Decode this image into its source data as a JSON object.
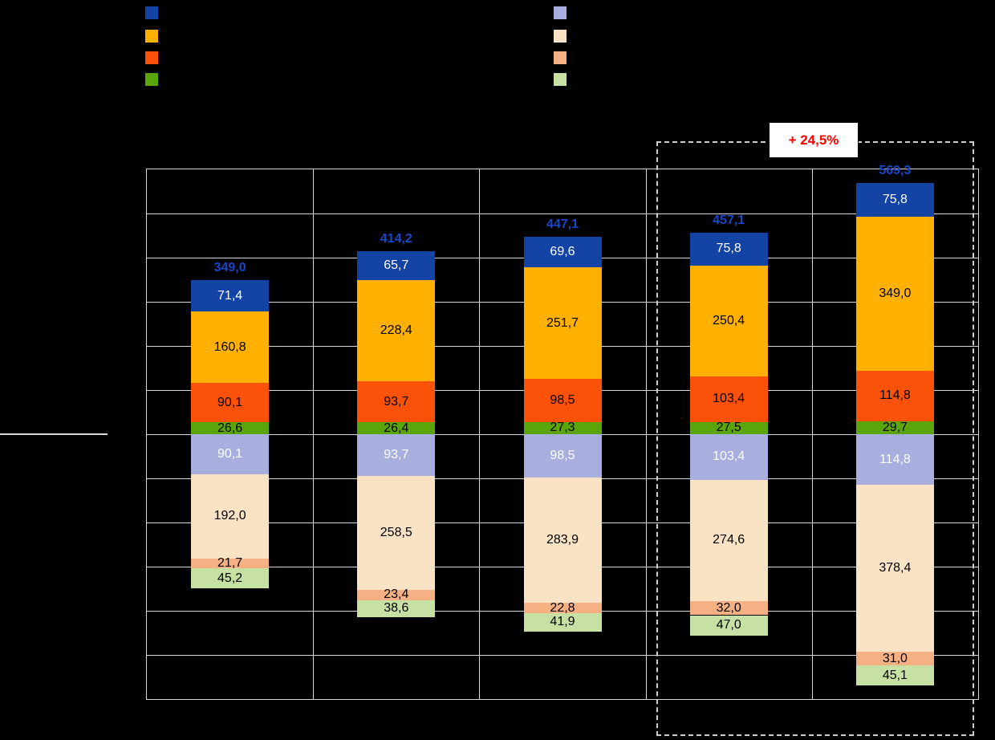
{
  "colors": {
    "background": "#000000",
    "grid": "#d9d9d9",
    "frame": "#d9d9d9",
    "dashed_box": "#cfcfcf",
    "total_label": "#1a46c8",
    "annotation_text": "#ff0000",
    "annotation_bg": "#ffffff",
    "axis_line": "#d9d9d9"
  },
  "legend": {
    "left_swatches": [
      {
        "name": "dark-blue",
        "color": "#1243a5"
      },
      {
        "name": "amber",
        "color": "#ffb000"
      },
      {
        "name": "orange-red",
        "color": "#fb5109"
      },
      {
        "name": "green",
        "color": "#5aa50a"
      }
    ],
    "right_swatches": [
      {
        "name": "lavender",
        "color": "#a8aede"
      },
      {
        "name": "peach",
        "color": "#fae3c4"
      },
      {
        "name": "salmon",
        "color": "#f5b183"
      },
      {
        "name": "light-green",
        "color": "#c7e0a3"
      }
    ]
  },
  "chart_data": {
    "type": "bar",
    "subtype": "mirrored-stacked-columns",
    "categories": [
      "",
      "",
      "",
      "",
      ""
    ],
    "totals": [
      349.0,
      414.2,
      447.1,
      457.1,
      569.3
    ],
    "upper_series": [
      {
        "name": "dark-blue",
        "color": "#1243a5",
        "text_color": "#ffffff",
        "values": [
          71.4,
          65.7,
          69.6,
          75.8,
          75.8
        ]
      },
      {
        "name": "amber",
        "color": "#ffb000",
        "text_color": "#000000",
        "values": [
          160.8,
          228.4,
          251.7,
          250.4,
          349.0
        ]
      },
      {
        "name": "orange-red",
        "color": "#fb5109",
        "text_color": "#000000",
        "values": [
          90.1,
          93.7,
          98.5,
          103.4,
          114.8
        ]
      },
      {
        "name": "green",
        "color": "#5aa50a",
        "text_color": "#000000",
        "values": [
          26.6,
          26.4,
          27.3,
          27.5,
          29.7
        ]
      }
    ],
    "lower_series": [
      {
        "name": "lavender",
        "color": "#a8aede",
        "text_color": "#ffffff",
        "values": [
          90.1,
          93.7,
          98.5,
          103.4,
          114.8
        ]
      },
      {
        "name": "peach",
        "color": "#fae3c4",
        "text_color": "#000000",
        "values": [
          192.0,
          258.5,
          283.9,
          274.6,
          378.4
        ]
      },
      {
        "name": "salmon",
        "color": "#f5b183",
        "text_color": "#000000",
        "values": [
          21.7,
          23.4,
          22.8,
          32.0,
          31.0
        ]
      },
      {
        "name": "light-green",
        "color": "#c7e0a3",
        "text_color": "#000000",
        "values": [
          45.2,
          38.6,
          41.9,
          47.0,
          45.1
        ]
      }
    ],
    "annotation": {
      "text": "+ 24,5%",
      "applies_to_bars": [
        4,
        5
      ]
    },
    "grid": {
      "rows": 12,
      "cols": 5
    },
    "units_per_gridline": 100,
    "decimal_separator": ","
  }
}
